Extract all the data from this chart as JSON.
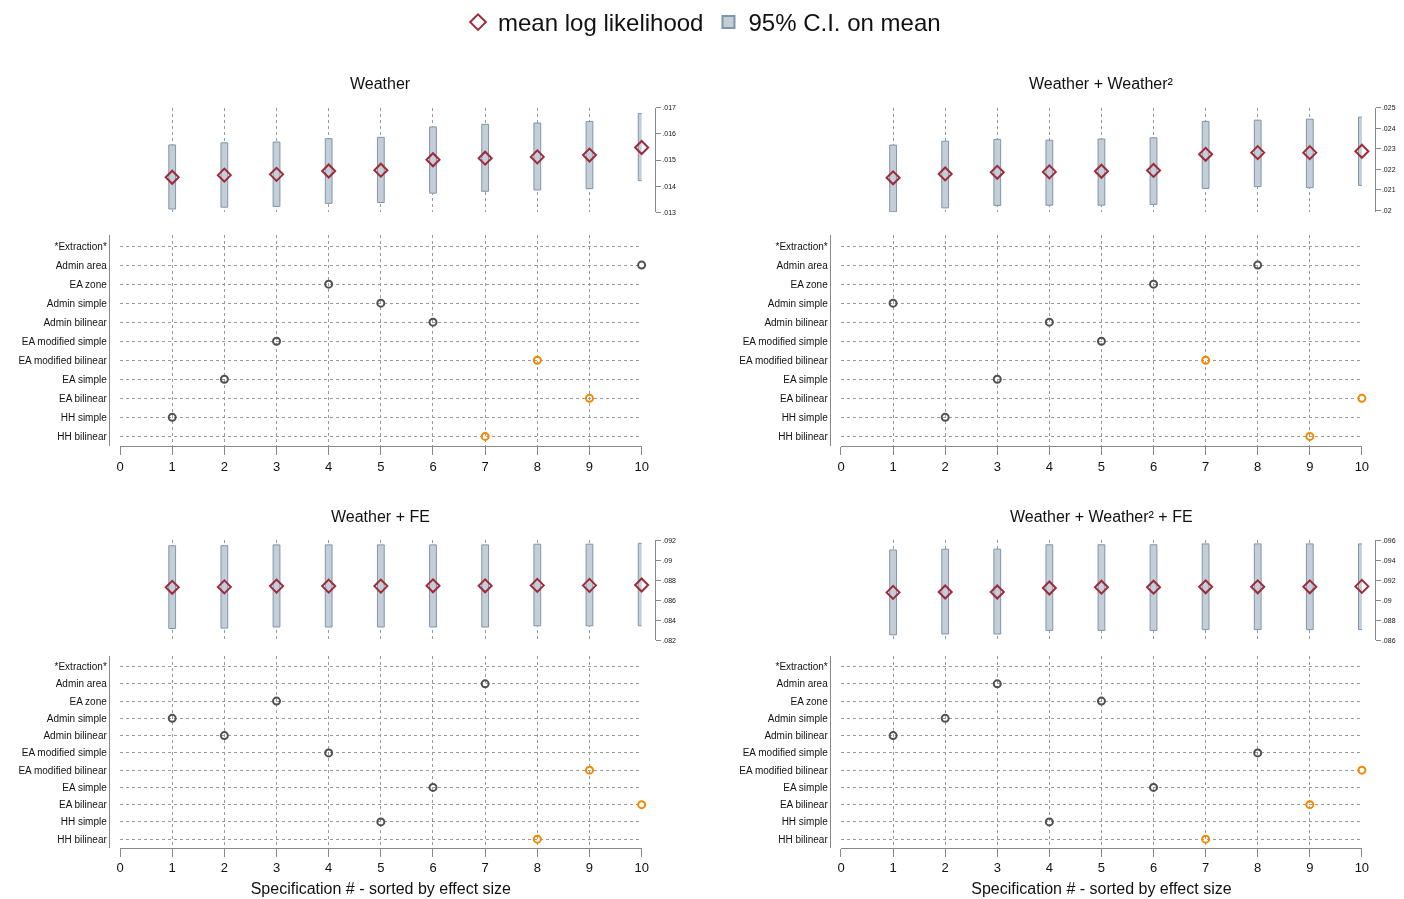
{
  "chart_data": [
    {
      "type": "scatter",
      "title": "Weather",
      "legend": "top",
      "tick_labels": "y",
      "grid": "x",
      "x": [
        1,
        2,
        3,
        4,
        5,
        6,
        7,
        8,
        9,
        10
      ],
      "xlim": [
        0,
        10
      ],
      "y2lim": [
        0.013,
        0.017
      ],
      "y2ticks": [
        {
          "value": 0.013,
          "label": ".013"
        },
        {
          "value": 0.014,
          "label": ".014"
        },
        {
          "value": 0.015,
          "label": ".015"
        },
        {
          "value": 0.016,
          "label": ".016"
        },
        {
          "value": 0.017,
          "label": ".017"
        }
      ],
      "series": [
        {
          "name": "95% C.I. on mean",
          "type": "bar",
          "axis": "y2",
          "color": "#c3ced8",
          "base": [
            0.01312,
            0.01319,
            0.01322,
            0.01334,
            0.01337,
            0.01373,
            0.0138,
            0.01385,
            0.0139,
            0.01421
          ],
          "values": [
            0.00246,
            0.00247,
            0.00247,
            0.00248,
            0.0025,
            0.00254,
            0.00257,
            0.00257,
            0.00258,
            0.00257
          ]
        },
        {
          "name": "mean log likelihood",
          "type": "scatter",
          "axis": "y2",
          "marker": "diamond",
          "color": "#9e2a3a",
          "values": [
            0.01434,
            0.01442,
            0.01445,
            0.01458,
            0.01461,
            0.01501,
            0.01507,
            0.01512,
            0.01519,
            0.01548
          ]
        }
      ]
    },
    {
      "type": "scatter",
      "orientation": "horizontal",
      "grid": true,
      "marker": "circle",
      "xlim": [
        0,
        10
      ],
      "xticks": [
        0,
        1,
        2,
        3,
        4,
        5,
        6,
        7,
        8,
        9,
        10
      ],
      "categories": [
        "*Extraction*",
        "Admin area",
        "EA zone",
        "Admin simple",
        "Admin bilinear",
        "EA modified simple",
        "EA modified bilinear",
        "EA simple",
        "EA bilinear",
        "HH simple",
        "HH bilinear"
      ],
      "values": [
        null,
        10,
        4,
        5,
        6,
        3,
        8,
        2,
        9,
        1,
        7
      ],
      "colors": [
        "#505050",
        "#505050",
        "#505050",
        "#505050",
        "#505050",
        "#505050",
        "#f28a00",
        "#505050",
        "#f28a00",
        "#505050",
        "#f28a00"
      ]
    },
    {
      "type": "scatter",
      "title": "Weather + Weather²",
      "tick_labels": "y",
      "grid": "x",
      "x": [
        1,
        2,
        3,
        4,
        5,
        6,
        7,
        8,
        9,
        10
      ],
      "xlim": [
        0,
        10
      ],
      "y2lim": [
        0.0199,
        0.025
      ],
      "y2ticks": [
        {
          "value": 0.02,
          "label": ".02"
        },
        {
          "value": 0.021,
          "label": ".021"
        },
        {
          "value": 0.022,
          "label": ".022"
        },
        {
          "value": 0.023,
          "label": ".023"
        },
        {
          "value": 0.024,
          "label": ".024"
        },
        {
          "value": 0.025,
          "label": ".025"
        }
      ],
      "series": [
        {
          "type": "bar",
          "axis": "y2",
          "color": "#c3ced8",
          "base": [
            0.01992,
            0.02011,
            0.02023,
            0.02024,
            0.02024,
            0.02028,
            0.02106,
            0.02115,
            0.0211,
            0.02121
          ],
          "values": [
            0.00326,
            0.00326,
            0.00323,
            0.00318,
            0.00324,
            0.00326,
            0.00328,
            0.00325,
            0.00335,
            0.00334
          ]
        },
        {
          "type": "scatter",
          "axis": "y2",
          "marker": "diamond",
          "color": "#9e2a3a",
          "values": [
            0.02158,
            0.02177,
            0.02185,
            0.02187,
            0.0219,
            0.02194,
            0.02273,
            0.02281,
            0.02281,
            0.02288
          ]
        }
      ]
    },
    {
      "type": "scatter",
      "orientation": "horizontal",
      "grid": true,
      "marker": "circle",
      "xlim": [
        0,
        10
      ],
      "xticks": [
        0,
        1,
        2,
        3,
        4,
        5,
        6,
        7,
        8,
        9,
        10
      ],
      "categories": [
        "*Extraction*",
        "Admin area",
        "EA zone",
        "Admin simple",
        "Admin bilinear",
        "EA modified simple",
        "EA modified bilinear",
        "EA simple",
        "EA bilinear",
        "HH simple",
        "HH bilinear"
      ],
      "values": [
        null,
        8,
        6,
        1,
        4,
        5,
        7,
        3,
        10,
        2,
        9
      ],
      "colors": [
        "#505050",
        "#505050",
        "#505050",
        "#505050",
        "#505050",
        "#505050",
        "#f28a00",
        "#505050",
        "#f28a00",
        "#505050",
        "#f28a00"
      ]
    },
    {
      "type": "scatter",
      "title": "Weather + FE",
      "tick_labels": "y",
      "grid": "x",
      "x": [
        1,
        2,
        3,
        4,
        5,
        6,
        7,
        8,
        9,
        10
      ],
      "xlim": [
        0,
        10
      ],
      "y2lim": [
        0.082,
        0.092
      ],
      "y2ticks": [
        {
          "value": 0.082,
          "label": ".082"
        },
        {
          "value": 0.084,
          "label": ".084"
        },
        {
          "value": 0.086,
          "label": ".086"
        },
        {
          "value": 0.088,
          "label": ".088"
        },
        {
          "value": 0.09,
          "label": ".09"
        },
        {
          "value": 0.092,
          "label": ".092"
        }
      ],
      "series": [
        {
          "type": "bar",
          "axis": "y2",
          "color": "#c3ced8",
          "base": [
            0.08316,
            0.0832,
            0.08331,
            0.08331,
            0.08331,
            0.08331,
            0.08331,
            0.08343,
            0.08343,
            0.08343
          ],
          "values": [
            0.0083,
            0.00826,
            0.00823,
            0.00823,
            0.00823,
            0.00823,
            0.00823,
            0.00818,
            0.00818,
            0.00826
          ]
        },
        {
          "type": "scatter",
          "axis": "y2",
          "marker": "diamond",
          "color": "#9e2a3a",
          "values": [
            0.08729,
            0.08733,
            0.08741,
            0.08741,
            0.08741,
            0.08744,
            0.08744,
            0.08748,
            0.08748,
            0.08752
          ]
        }
      ]
    },
    {
      "type": "scatter",
      "orientation": "horizontal",
      "grid": true,
      "marker": "circle",
      "xlim": [
        0,
        10
      ],
      "xticks": [
        0,
        1,
        2,
        3,
        4,
        5,
        6,
        7,
        8,
        9,
        10
      ],
      "xlabel": "Specification # - sorted by effect size",
      "categories": [
        "*Extraction*",
        "Admin area",
        "EA zone",
        "Admin simple",
        "Admin bilinear",
        "EA modified simple",
        "EA modified bilinear",
        "EA simple",
        "EA bilinear",
        "HH simple",
        "HH bilinear"
      ],
      "values": [
        null,
        7,
        3,
        1,
        2,
        4,
        9,
        6,
        10,
        5,
        8
      ],
      "colors": [
        "#505050",
        "#505050",
        "#505050",
        "#505050",
        "#505050",
        "#505050",
        "#f28a00",
        "#505050",
        "#f28a00",
        "#505050",
        "#f28a00"
      ]
    },
    {
      "type": "scatter",
      "title": "Weather + Weather² + FE",
      "tick_labels": "y",
      "grid": "x",
      "x": [
        1,
        2,
        3,
        4,
        5,
        6,
        7,
        8,
        9,
        10
      ],
      "xlim": [
        0,
        10
      ],
      "y2lim": [
        0.086,
        0.096
      ],
      "y2ticks": [
        {
          "value": 0.086,
          "label": ".086"
        },
        {
          "value": 0.088,
          "label": ".088"
        },
        {
          "value": 0.09,
          "label": ".09"
        },
        {
          "value": 0.092,
          "label": ".092"
        },
        {
          "value": 0.094,
          "label": ".094"
        },
        {
          "value": 0.096,
          "label": ".096"
        }
      ],
      "series": [
        {
          "type": "bar",
          "axis": "y2",
          "color": "#c3ced8",
          "base": [
            0.08653,
            0.08661,
            0.08661,
            0.08697,
            0.08697,
            0.08697,
            0.08705,
            0.08705,
            0.08705,
            0.08705
          ],
          "values": [
            0.0085,
            0.0085,
            0.0085,
            0.00858,
            0.00858,
            0.00858,
            0.00859,
            0.00859,
            0.00859,
            0.00859
          ]
        },
        {
          "type": "scatter",
          "axis": "y2",
          "marker": "diamond",
          "color": "#9e2a3a",
          "values": [
            0.09078,
            0.09082,
            0.09082,
            0.09122,
            0.0913,
            0.0913,
            0.09134,
            0.09134,
            0.09134,
            0.09138
          ]
        }
      ]
    },
    {
      "type": "scatter",
      "orientation": "horizontal",
      "grid": true,
      "marker": "circle",
      "xlim": [
        0,
        10
      ],
      "xticks": [
        0,
        1,
        2,
        3,
        4,
        5,
        6,
        7,
        8,
        9,
        10
      ],
      "xlabel": "Specification # - sorted by effect size",
      "categories": [
        "*Extraction*",
        "Admin area",
        "EA zone",
        "Admin simple",
        "Admin bilinear",
        "EA modified simple",
        "EA modified bilinear",
        "EA simple",
        "EA bilinear",
        "HH simple",
        "HH bilinear"
      ],
      "values": [
        null,
        3,
        5,
        2,
        1,
        8,
        10,
        6,
        9,
        4,
        7
      ],
      "colors": [
        "#505050",
        "#505050",
        "#505050",
        "#505050",
        "#505050",
        "#505050",
        "#f28a00",
        "#505050",
        "#f28a00",
        "#505050",
        "#f28a00"
      ]
    }
  ]
}
